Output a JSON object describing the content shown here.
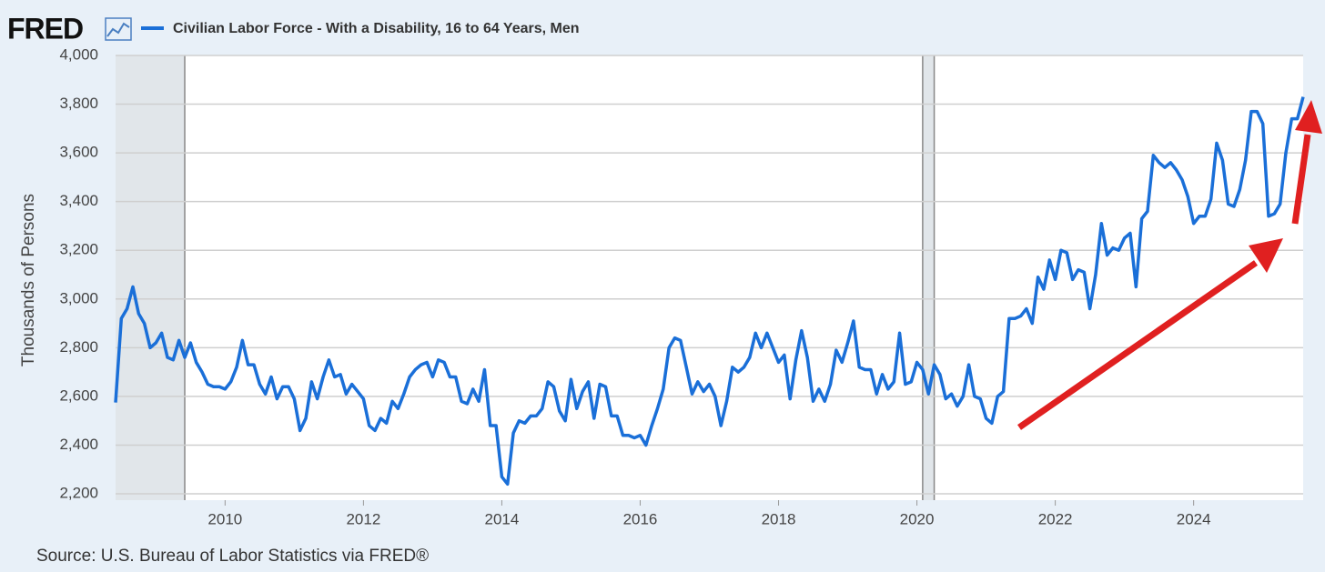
{
  "chart_data": {
    "type": "line",
    "brand": "FRED",
    "title": "Civilian Labor Force - With a Disability, 16 to 64 Years, Men",
    "y_label": "Thousands of Persons",
    "source": "Source: U.S. Bureau of Labor Statistics via FRED®",
    "xlim": [
      2008.417,
      2025.583
    ],
    "xticks": [
      2010,
      2012,
      2014,
      2016,
      2018,
      2020,
      2022,
      2024
    ],
    "ylim": [
      2180,
      4000
    ],
    "yticks": [
      {
        "value": 2200,
        "label": "2,200"
      },
      {
        "value": 2400,
        "label": "2,400"
      },
      {
        "value": 2600,
        "label": "2,600"
      },
      {
        "value": 2800,
        "label": "2,800"
      },
      {
        "value": 3000,
        "label": "3,000"
      },
      {
        "value": 3200,
        "label": "3,200"
      },
      {
        "value": 3400,
        "label": "3,400"
      },
      {
        "value": 3600,
        "label": "3,600"
      },
      {
        "value": 3800,
        "label": "3,800"
      },
      {
        "value": 4000,
        "label": "4,000"
      }
    ],
    "grid": true,
    "recessions": [
      [
        2007.917,
        2009.417
      ],
      [
        2020.083,
        2020.25
      ]
    ],
    "x": [
      2008.417,
      2008.5,
      2008.583,
      2008.667,
      2008.75,
      2008.833,
      2008.917,
      2009,
      2009.083,
      2009.167,
      2009.25,
      2009.333,
      2009.417,
      2009.5,
      2009.583,
      2009.667,
      2009.75,
      2009.833,
      2009.917,
      2010,
      2010.083,
      2010.167,
      2010.25,
      2010.333,
      2010.417,
      2010.5,
      2010.583,
      2010.667,
      2010.75,
      2010.833,
      2010.917,
      2011,
      2011.083,
      2011.167,
      2011.25,
      2011.333,
      2011.417,
      2011.5,
      2011.583,
      2011.667,
      2011.75,
      2011.833,
      2011.917,
      2012,
      2012.083,
      2012.167,
      2012.25,
      2012.333,
      2012.417,
      2012.5,
      2012.583,
      2012.667,
      2012.75,
      2012.833,
      2012.917,
      2013,
      2013.083,
      2013.167,
      2013.25,
      2013.333,
      2013.417,
      2013.5,
      2013.583,
      2013.667,
      2013.75,
      2013.833,
      2013.917,
      2014,
      2014.083,
      2014.167,
      2014.25,
      2014.333,
      2014.417,
      2014.5,
      2014.583,
      2014.667,
      2014.75,
      2014.833,
      2014.917,
      2015,
      2015.083,
      2015.167,
      2015.25,
      2015.333,
      2015.417,
      2015.5,
      2015.583,
      2015.667,
      2015.75,
      2015.833,
      2015.917,
      2016,
      2016.083,
      2016.167,
      2016.25,
      2016.333,
      2016.417,
      2016.5,
      2016.583,
      2016.667,
      2016.75,
      2016.833,
      2016.917,
      2017,
      2017.083,
      2017.167,
      2017.25,
      2017.333,
      2017.417,
      2017.5,
      2017.583,
      2017.667,
      2017.75,
      2017.833,
      2017.917,
      2018,
      2018.083,
      2018.167,
      2018.25,
      2018.333,
      2018.417,
      2018.5,
      2018.583,
      2018.667,
      2018.75,
      2018.833,
      2018.917,
      2019,
      2019.083,
      2019.167,
      2019.25,
      2019.333,
      2019.417,
      2019.5,
      2019.583,
      2019.667,
      2019.75,
      2019.833,
      2019.917,
      2020,
      2020.083,
      2020.167,
      2020.25,
      2020.333,
      2020.417,
      2020.5,
      2020.583,
      2020.667,
      2020.75,
      2020.833,
      2020.917,
      2021,
      2021.083,
      2021.167,
      2021.25,
      2021.333,
      2021.417,
      2021.5,
      2021.583,
      2021.667,
      2021.75,
      2021.833,
      2021.917,
      2022,
      2022.083,
      2022.167,
      2022.25,
      2022.333,
      2022.417,
      2022.5,
      2022.583,
      2022.667,
      2022.75,
      2022.833,
      2022.917,
      2023,
      2023.083,
      2023.167,
      2023.25,
      2023.333,
      2023.417,
      2023.5,
      2023.583,
      2023.667,
      2023.75,
      2023.833,
      2023.917,
      2024,
      2024.083,
      2024.167,
      2024.25,
      2024.333,
      2024.417,
      2024.5,
      2024.583,
      2024.667,
      2024.75,
      2024.833,
      2024.917,
      2025,
      2025.083,
      2025.167,
      2025.25,
      2025.333,
      2025.417,
      2025.5,
      2025.583
    ],
    "series": [
      {
        "name": "Civilian Labor Force - With a Disability, 16 to 64 Years, Men",
        "color": "#1a6fd8",
        "values": [
          2575,
          2920,
          2960,
          3050,
          2940,
          2900,
          2800,
          2820,
          2860,
          2760,
          2750,
          2830,
          2760,
          2820,
          2740,
          2700,
          2650,
          2640,
          2640,
          2630,
          2660,
          2720,
          2830,
          2730,
          2730,
          2650,
          2610,
          2680,
          2590,
          2640,
          2640,
          2590,
          2460,
          2510,
          2660,
          2590,
          2680,
          2750,
          2680,
          2690,
          2610,
          2650,
          2620,
          2590,
          2480,
          2460,
          2510,
          2490,
          2580,
          2550,
          2610,
          2680,
          2710,
          2730,
          2740,
          2680,
          2750,
          2740,
          2680,
          2680,
          2580,
          2570,
          2630,
          2580,
          2710,
          2480,
          2480,
          2270,
          2240,
          2450,
          2500,
          2490,
          2520,
          2520,
          2550,
          2660,
          2640,
          2540,
          2500,
          2670,
          2550,
          2620,
          2660,
          2510,
          2650,
          2640,
          2520,
          2520,
          2440,
          2440,
          2430,
          2440,
          2400,
          2480,
          2550,
          2630,
          2800,
          2840,
          2830,
          2720,
          2610,
          2660,
          2620,
          2650,
          2600,
          2480,
          2580,
          2720,
          2700,
          2720,
          2760,
          2860,
          2800,
          2860,
          2800,
          2740,
          2770,
          2590,
          2750,
          2870,
          2760,
          2580,
          2630,
          2580,
          2650,
          2790,
          2740,
          2820,
          2910,
          2720,
          2710,
          2710,
          2610,
          2690,
          2630,
          2660,
          2860,
          2650,
          2660,
          2740,
          2710,
          2610,
          2730,
          2690,
          2590,
          2610,
          2560,
          2600,
          2730,
          2600,
          2590,
          2510,
          2490,
          2600,
          2620,
          2920,
          2920,
          2930,
          2960,
          2900,
          3090,
          3040,
          3160,
          3080,
          3200,
          3190,
          3080,
          3120,
          3110,
          2960,
          3100,
          3310,
          3180,
          3210,
          3200,
          3250,
          3270,
          3050,
          3330,
          3360,
          3590,
          3560,
          3540,
          3560,
          3530,
          3490,
          3420,
          3310,
          3340,
          3340,
          3410,
          3640,
          3570,
          3390,
          3380,
          3450,
          3570,
          3770,
          3770,
          3720,
          3340,
          3350,
          3390,
          3600,
          3740,
          3740,
          3830
        ]
      }
    ]
  }
}
